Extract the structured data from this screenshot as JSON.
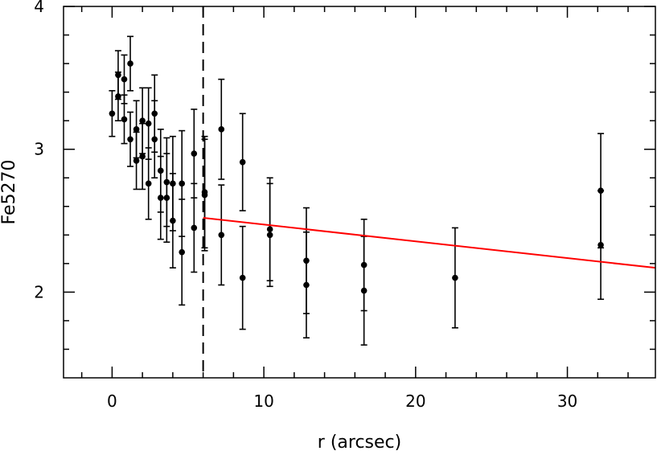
{
  "chart_data": {
    "type": "scatter",
    "title": "",
    "xlabel": "r (arcsec)",
    "ylabel": "Fe5270",
    "xlim": [
      -3.2,
      35.8
    ],
    "ylim": [
      1.4,
      4.0
    ],
    "xticks": [
      0,
      10,
      20,
      30
    ],
    "yticks": [
      2,
      3,
      4
    ],
    "xtick_labels": [
      "0",
      "10",
      "20",
      "30"
    ],
    "ytick_labels": [
      "2",
      "3",
      "4"
    ],
    "grid": false,
    "vline_x": 6.0,
    "fit_line": {
      "x": [
        6.0,
        35.8
      ],
      "y": [
        2.52,
        2.17
      ],
      "color": "#ff0000"
    },
    "series": [
      {
        "points": [
          {
            "x": 0.0,
            "y": 3.25,
            "err": 0.16
          },
          {
            "x": 0.4,
            "y": 3.52,
            "err": 0.17
          },
          {
            "x": 0.4,
            "y": 3.37,
            "err": 0.17
          },
          {
            "x": 0.8,
            "y": 3.49,
            "err": 0.17
          },
          {
            "x": 0.8,
            "y": 3.21,
            "err": 0.17
          },
          {
            "x": 1.2,
            "y": 3.6,
            "err": 0.19
          },
          {
            "x": 1.2,
            "y": 3.07,
            "err": 0.19
          },
          {
            "x": 1.6,
            "y": 3.14,
            "err": 0.2
          },
          {
            "x": 1.6,
            "y": 2.92,
            "err": 0.2
          },
          {
            "x": 2.0,
            "y": 3.2,
            "err": 0.23
          },
          {
            "x": 2.0,
            "y": 2.95,
            "err": 0.23
          },
          {
            "x": 2.4,
            "y": 3.18,
            "err": 0.25
          },
          {
            "x": 2.4,
            "y": 2.76,
            "err": 0.25
          },
          {
            "x": 2.8,
            "y": 3.25,
            "err": 0.27
          },
          {
            "x": 2.8,
            "y": 3.07,
            "err": 0.27
          },
          {
            "x": 3.2,
            "y": 2.85,
            "err": 0.29
          },
          {
            "x": 3.2,
            "y": 2.66,
            "err": 0.29
          },
          {
            "x": 3.6,
            "y": 2.77,
            "err": 0.31
          },
          {
            "x": 3.6,
            "y": 2.66,
            "err": 0.31
          },
          {
            "x": 4.0,
            "y": 2.76,
            "err": 0.33
          },
          {
            "x": 4.0,
            "y": 2.5,
            "err": 0.33
          },
          {
            "x": 4.6,
            "y": 2.76,
            "err": 0.37
          },
          {
            "x": 4.6,
            "y": 2.28,
            "err": 0.37
          },
          {
            "x": 5.4,
            "y": 2.97,
            "err": 0.31
          },
          {
            "x": 5.4,
            "y": 2.45,
            "err": 0.31
          },
          {
            "x": 6.1,
            "y": 2.7,
            "err": 0.39
          },
          {
            "x": 6.1,
            "y": 2.68,
            "err": 0.39
          },
          {
            "x": 7.2,
            "y": 3.14,
            "err": 0.35
          },
          {
            "x": 7.2,
            "y": 2.4,
            "err": 0.35
          },
          {
            "x": 8.6,
            "y": 2.91,
            "err": 0.34
          },
          {
            "x": 8.6,
            "y": 2.1,
            "err": 0.36
          },
          {
            "x": 10.4,
            "y": 2.44,
            "err": 0.36
          },
          {
            "x": 10.4,
            "y": 2.4,
            "err": 0.36
          },
          {
            "x": 12.8,
            "y": 2.22,
            "err": 0.37
          },
          {
            "x": 12.8,
            "y": 2.05,
            "err": 0.37
          },
          {
            "x": 16.6,
            "y": 2.19,
            "err": 0.32
          },
          {
            "x": 16.6,
            "y": 2.01,
            "err": 0.38
          },
          {
            "x": 22.6,
            "y": 2.1,
            "err": 0.35
          },
          {
            "x": 32.2,
            "y": 2.71,
            "err": 0.4
          },
          {
            "x": 32.2,
            "y": 2.33,
            "err": 0.38
          }
        ]
      }
    ]
  }
}
